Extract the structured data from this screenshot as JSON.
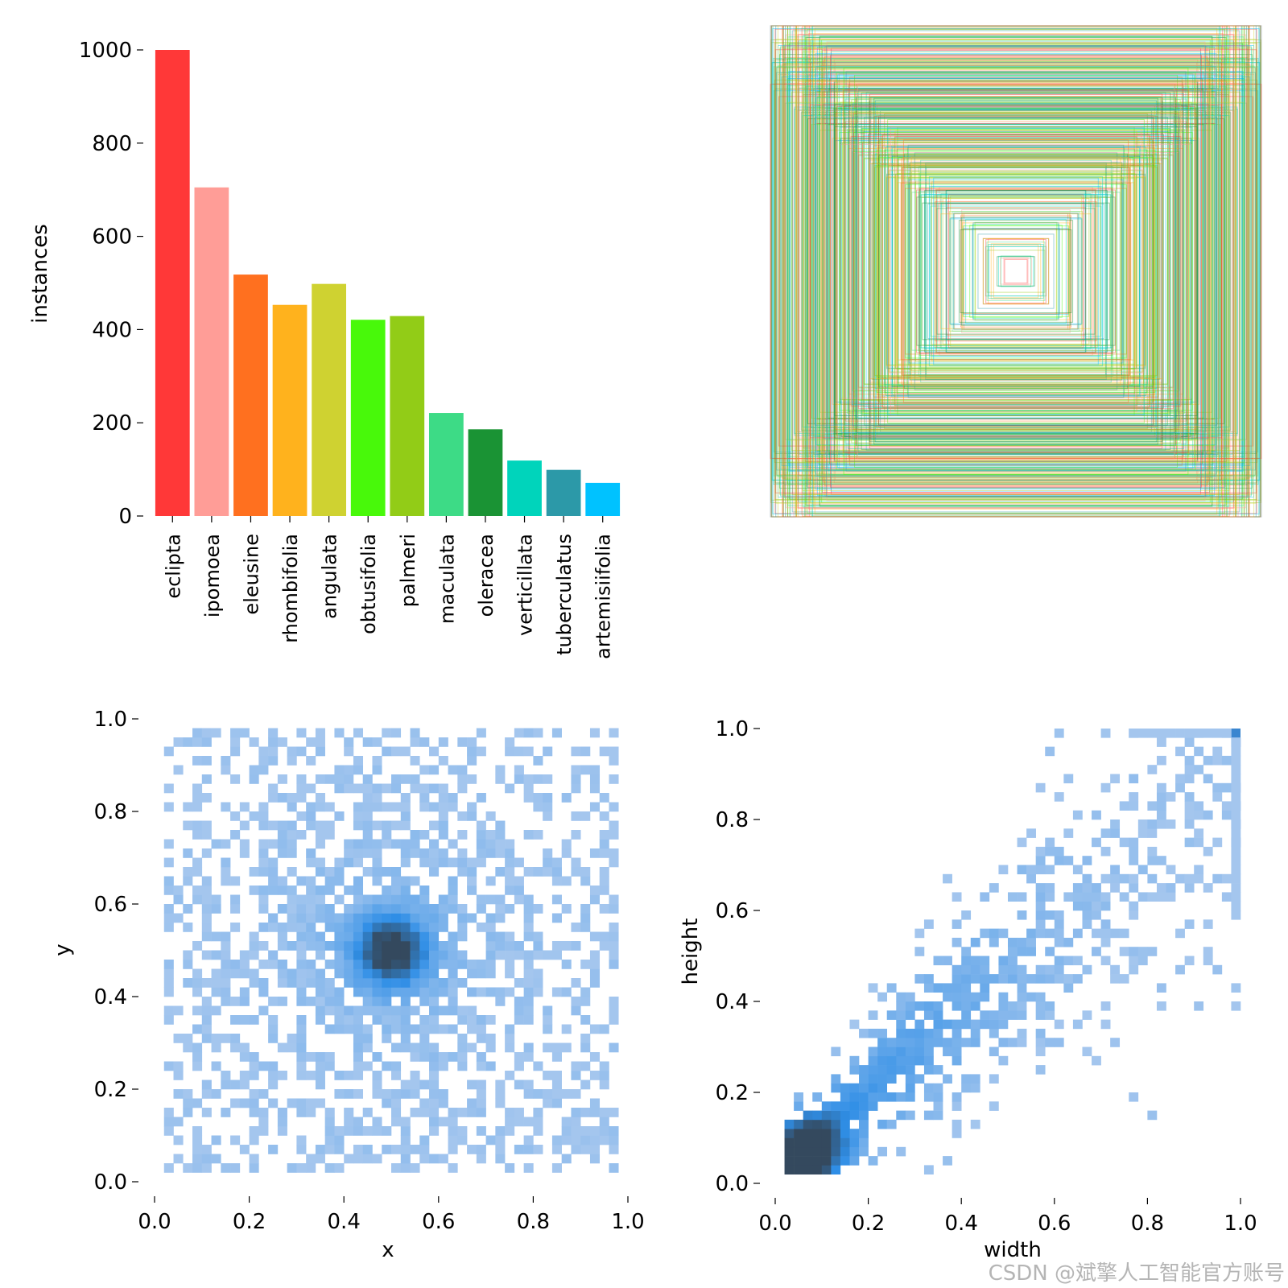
{
  "chart_data": [
    {
      "type": "bar",
      "ylabel": "instances",
      "ylim": [
        0,
        1000
      ],
      "yticks": [
        0,
        200,
        400,
        600,
        800,
        1000
      ],
      "categories": [
        "eclipta",
        "ipomoea",
        "eleusine",
        "rhombifolia",
        "angulata",
        "obtusifolia",
        "palmeri",
        "maculata",
        "oleracea",
        "verticillata",
        "tuberculatus",
        "artemisiifolia"
      ],
      "values": [
        1000,
        705,
        518,
        453,
        498,
        421,
        429,
        221,
        186,
        119,
        99,
        71
      ],
      "colors": [
        "#FF3838",
        "#FF9D97",
        "#FF701F",
        "#FFB21D",
        "#CFD231",
        "#48F90A",
        "#92CC17",
        "#3DDB86",
        "#1A9334",
        "#00D4BB",
        "#2C99A8",
        "#00C2FF"
      ]
    },
    {
      "type": "box-overlay",
      "description_values": "centered normalized label boxes drawn as rectangle outlines",
      "box_colors": [
        "#FF3838",
        "#FF9D97",
        "#FF701F",
        "#FFB21D",
        "#CFD231",
        "#48F90A",
        "#92CC17",
        "#3DDB86",
        "#1A9334",
        "#00D4BB",
        "#2C99A8",
        "#00C2FF"
      ]
    },
    {
      "type": "heatmap",
      "xlabel": "x",
      "ylabel": "y",
      "xlim": [
        0,
        1
      ],
      "ylim": [
        0,
        1
      ],
      "xticks": [
        "0.0",
        "0.2",
        "0.4",
        "0.6",
        "0.8",
        "1.0"
      ],
      "yticks": [
        "0.0",
        "0.2",
        "0.4",
        "0.6",
        "0.8",
        "1.0"
      ],
      "bins": 50,
      "peak": [
        0.5,
        0.5
      ],
      "color_low": "#a4c6ee",
      "color_high": "#34495e"
    },
    {
      "type": "heatmap",
      "xlabel": "width",
      "ylabel": "height",
      "xlim": [
        0,
        1
      ],
      "ylim": [
        0,
        1
      ],
      "xticks": [
        "0.0",
        "0.2",
        "0.4",
        "0.6",
        "0.8",
        "1.0"
      ],
      "yticks": [
        "0.0",
        "0.2",
        "0.4",
        "0.6",
        "0.8",
        "1.0"
      ],
      "bins": 50,
      "peak": [
        0.06,
        0.06
      ],
      "color_low": "#a4c6ee",
      "color_high": "#34495e"
    }
  ],
  "watermark": "CSDN @斌擎人工智能官方账号"
}
